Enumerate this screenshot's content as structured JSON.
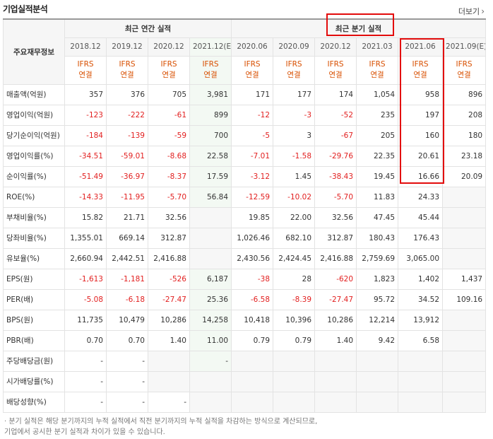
{
  "title": "기업실적분석",
  "more_label": "더보기",
  "more_icon": "chevron-right-icon",
  "row_header": "주요재무정보",
  "groups": {
    "annual": "최근 연간 실적",
    "quarterly": "최근 분기 실적"
  },
  "dates": [
    "2018.12",
    "2019.12",
    "2020.12",
    "2021.12(E)",
    "2020.06",
    "2020.09",
    "2020.12",
    "2021.03",
    "2021.06",
    "2021.09(E)"
  ],
  "ifrs_line1": "IFRS",
  "ifrs_line2": "연결",
  "rows": [
    {
      "label": "매출액(억원)",
      "values": [
        "357",
        "376",
        "705",
        "3,981",
        "171",
        "177",
        "174",
        "1,054",
        "958",
        "896"
      ]
    },
    {
      "label": "영업이익(억원)",
      "values": [
        "-123",
        "-222",
        "-61",
        "899",
        "-12",
        "-3",
        "-52",
        "235",
        "197",
        "208"
      ]
    },
    {
      "label": "당기순이익(억원)",
      "values": [
        "-184",
        "-139",
        "-59",
        "700",
        "-5",
        "3",
        "-67",
        "205",
        "160",
        "180"
      ]
    },
    {
      "label": "영업이익률(%)",
      "values": [
        "-34.51",
        "-59.01",
        "-8.68",
        "22.58",
        "-7.01",
        "-1.58",
        "-29.76",
        "22.35",
        "20.61",
        "23.18"
      ]
    },
    {
      "label": "순이익률(%)",
      "values": [
        "-51.49",
        "-36.97",
        "-8.37",
        "17.59",
        "-3.12",
        "1.45",
        "-38.43",
        "19.45",
        "16.66",
        "20.09"
      ]
    },
    {
      "label": "ROE(%)",
      "values": [
        "-14.33",
        "-11.95",
        "-5.70",
        "56.84",
        "-12.59",
        "-10.02",
        "-5.70",
        "11.83",
        "24.33",
        ""
      ]
    },
    {
      "label": "부채비율(%)",
      "values": [
        "15.82",
        "21.71",
        "32.56",
        "",
        "19.85",
        "22.00",
        "32.56",
        "47.45",
        "45.44",
        ""
      ]
    },
    {
      "label": "당좌비율(%)",
      "values": [
        "1,355.01",
        "669.14",
        "312.87",
        "",
        "1,026.46",
        "682.10",
        "312.87",
        "180.43",
        "176.43",
        ""
      ]
    },
    {
      "label": "유보율(%)",
      "values": [
        "2,660.94",
        "2,442.51",
        "2,416.88",
        "",
        "2,430.56",
        "2,424.45",
        "2,416.88",
        "2,759.69",
        "3,065.00",
        ""
      ]
    },
    {
      "label": "EPS(원)",
      "values": [
        "-1,613",
        "-1,181",
        "-526",
        "6,187",
        "-38",
        "28",
        "-620",
        "1,823",
        "1,402",
        "1,437"
      ]
    },
    {
      "label": "PER(배)",
      "values": [
        "-5.08",
        "-6.18",
        "-27.47",
        "25.36",
        "-6.58",
        "-8.39",
        "-27.47",
        "95.72",
        "34.52",
        "109.16"
      ]
    },
    {
      "label": "BPS(원)",
      "values": [
        "11,735",
        "10,479",
        "10,286",
        "14,258",
        "10,418",
        "10,396",
        "10,286",
        "12,214",
        "13,912",
        ""
      ]
    },
    {
      "label": "PBR(배)",
      "values": [
        "0.70",
        "0.70",
        "1.40",
        "11.00",
        "0.79",
        "0.79",
        "1.40",
        "9.42",
        "6.58",
        ""
      ]
    },
    {
      "label": "주당배당금(원)",
      "values": [
        "-",
        "-",
        "",
        "-",
        "",
        "",
        "",
        "",
        "",
        ""
      ]
    },
    {
      "label": "시가배당률(%)",
      "values": [
        "-",
        "-",
        "",
        "",
        "",
        "",
        "",
        "",
        "",
        ""
      ]
    },
    {
      "label": "배당성향(%)",
      "values": [
        "-",
        "-",
        "-",
        "",
        "",
        "",
        "",
        "",
        "",
        ""
      ]
    }
  ],
  "footnote": [
    "· 분기 실적은 해당 분기까지의 누적 실적에서 직전 분기까지의 누적 실적을 차감하는 방식으로 계산되므로,",
    "  기업에서 공시한 분기 실적과 차이가 있을 수 있습니다."
  ],
  "colors": {
    "negative": "#e21f1f",
    "ifrs": "#d84f00",
    "highlight": "#e30c0c"
  }
}
